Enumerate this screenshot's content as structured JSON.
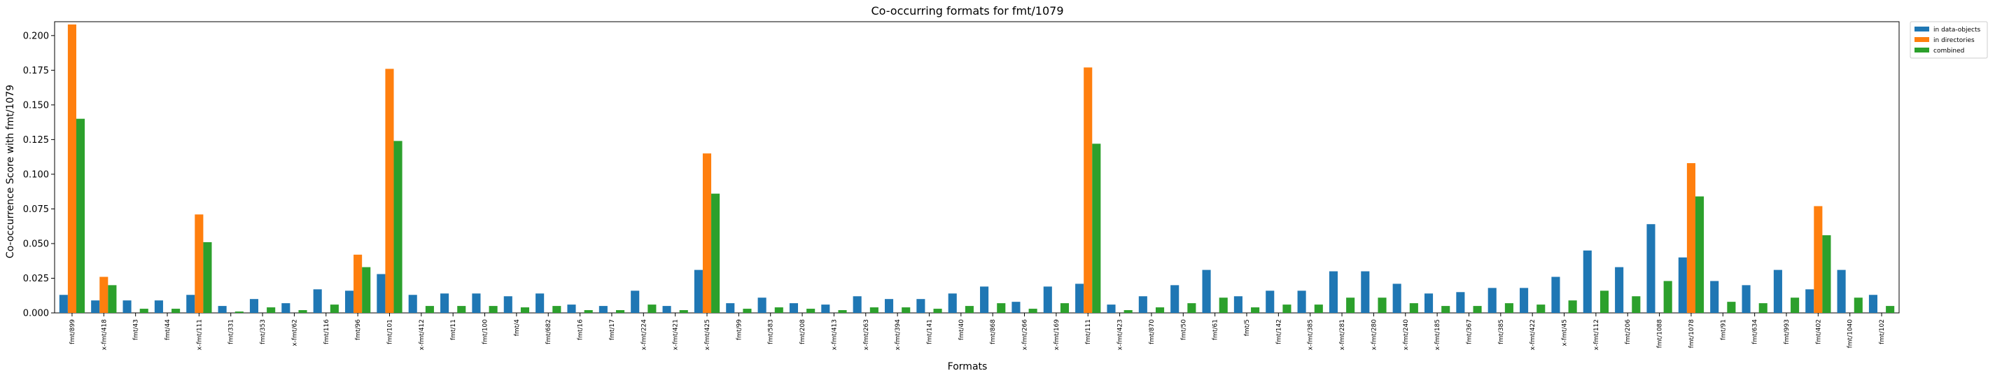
{
  "chart_data": {
    "type": "bar",
    "title": "Co-occurring formats for fmt/1079",
    "xlabel": "Formats",
    "ylabel": "Co-occurrence Score with fmt/1079",
    "ylim": [
      0,
      0.21
    ],
    "yticks": [
      "0.000",
      "0.025",
      "0.050",
      "0.075",
      "0.100",
      "0.125",
      "0.150",
      "0.175",
      "0.200"
    ],
    "legend_position": "outside-top-right",
    "categories": [
      "fmt/899",
      "x-fmt/418",
      "fmt/43",
      "fmt/44",
      "x-fmt/111",
      "fmt/331",
      "fmt/353",
      "x-fmt/62",
      "fmt/116",
      "fmt/96",
      "fmt/101",
      "x-fmt/412",
      "fmt/11",
      "fmt/100",
      "fmt/4",
      "fmt/682",
      "fmt/16",
      "fmt/17",
      "x-fmt/224",
      "x-fmt/421",
      "x-fmt/425",
      "fmt/99",
      "fmt/583",
      "fmt/208",
      "x-fmt/413",
      "x-fmt/263",
      "x-fmt/394",
      "fmt/141",
      "fmt/40",
      "fmt/868",
      "x-fmt/266",
      "x-fmt/169",
      "fmt/111",
      "x-fmt/423",
      "fmt/870",
      "fmt/50",
      "fmt/61",
      "fmt/5",
      "fmt/142",
      "x-fmt/385",
      "x-fmt/281",
      "x-fmt/280",
      "x-fmt/240",
      "x-fmt/185",
      "fmt/367",
      "fmt/385",
      "x-fmt/422",
      "x-fmt/45",
      "x-fmt/112",
      "fmt/206",
      "fmt/1088",
      "fmt/1078",
      "fmt/91",
      "fmt/634",
      "fmt/993",
      "fmt/402",
      "fmt/1040",
      "fmt/102"
    ],
    "series": [
      {
        "name": "in data-objects",
        "color": "#1f77b4",
        "values": [
          0.013,
          0.009,
          0.009,
          0.009,
          0.013,
          0.005,
          0.01,
          0.007,
          0.017,
          0.016,
          0.028,
          0.013,
          0.014,
          0.014,
          0.012,
          0.014,
          0.006,
          0.005,
          0.016,
          0.005,
          0.031,
          0.007,
          0.011,
          0.007,
          0.006,
          0.012,
          0.01,
          0.01,
          0.014,
          0.019,
          0.008,
          0.019,
          0.021,
          0.006,
          0.012,
          0.02,
          0.031,
          0.012,
          0.016,
          0.016,
          0.03,
          0.03,
          0.021,
          0.014,
          0.015,
          0.018,
          0.018,
          0.026,
          0.045,
          0.033,
          0.064,
          0.04,
          0.023,
          0.02,
          0.031,
          0.017,
          0.031,
          0.013
        ]
      },
      {
        "name": "in directories",
        "color": "#ff7f0e",
        "values": [
          0.208,
          0.026,
          0,
          0,
          0.071,
          0,
          0,
          0,
          0,
          0.042,
          0.176,
          0,
          0,
          0,
          0,
          0,
          0,
          0,
          0,
          0,
          0.115,
          0,
          0,
          0,
          0,
          0,
          0,
          0,
          0,
          0,
          0,
          0,
          0.177,
          0,
          0,
          0,
          0,
          0,
          0,
          0,
          0,
          0,
          0,
          0,
          0,
          0,
          0,
          0,
          0,
          0,
          0,
          0.108,
          0,
          0,
          0,
          0.077,
          0,
          0
        ]
      },
      {
        "name": "combined",
        "color": "#2ca02c",
        "values": [
          0.14,
          0.02,
          0.003,
          0.003,
          0.051,
          0.001,
          0.004,
          0.002,
          0.006,
          0.033,
          0.124,
          0.005,
          0.005,
          0.005,
          0.004,
          0.005,
          0.002,
          0.002,
          0.006,
          0.002,
          0.086,
          0.003,
          0.004,
          0.003,
          0.002,
          0.004,
          0.004,
          0.003,
          0.005,
          0.007,
          0.003,
          0.007,
          0.122,
          0.002,
          0.004,
          0.007,
          0.011,
          0.004,
          0.006,
          0.006,
          0.011,
          0.011,
          0.007,
          0.005,
          0.005,
          0.007,
          0.006,
          0.009,
          0.016,
          0.012,
          0.023,
          0.084,
          0.008,
          0.007,
          0.011,
          0.056,
          0.011,
          0.005
        ]
      }
    ]
  }
}
